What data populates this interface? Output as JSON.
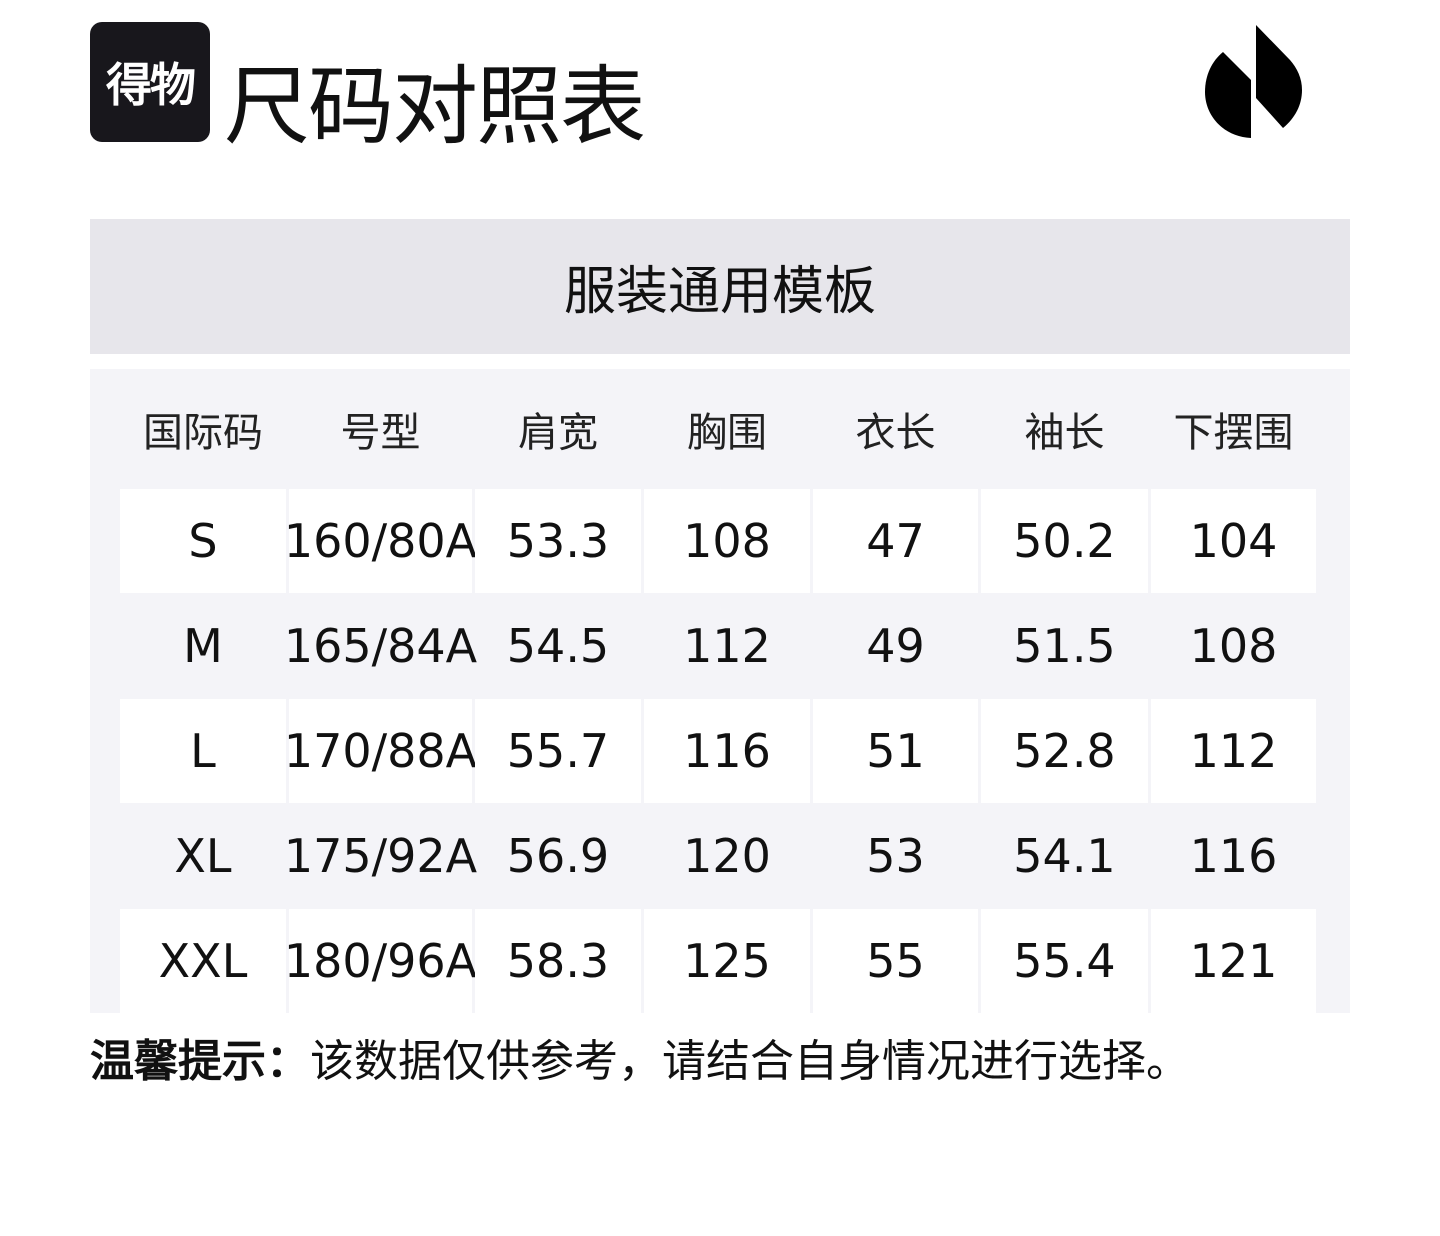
{
  "header": {
    "brand_logo_text": "得物",
    "title": "尺码对照表"
  },
  "template_title": "服装通用模板",
  "table": {
    "columns": [
      "国际码",
      "号型",
      "肩宽",
      "胸围",
      "衣长",
      "袖长",
      "下摆围"
    ],
    "rows": [
      [
        "S",
        "160/80A",
        "53.3",
        "108",
        "47",
        "50.2",
        "104"
      ],
      [
        "M",
        "165/84A",
        "54.5",
        "112",
        "49",
        "51.5",
        "108"
      ],
      [
        "L",
        "170/88A",
        "55.7",
        "116",
        "51",
        "52.8",
        "112"
      ],
      [
        "XL",
        "175/92A",
        "56.9",
        "120",
        "53",
        "54.1",
        "116"
      ],
      [
        "XXL",
        "180/96A",
        "58.3",
        "125",
        "55",
        "55.4",
        "121"
      ]
    ]
  },
  "note": {
    "label": "温馨提示：",
    "text": "该数据仅供参考，请结合自身情况进行选择。"
  },
  "colors": {
    "header_band": "#e7e6eb",
    "panel": "#f4f4f8",
    "badge": "#18171c"
  }
}
